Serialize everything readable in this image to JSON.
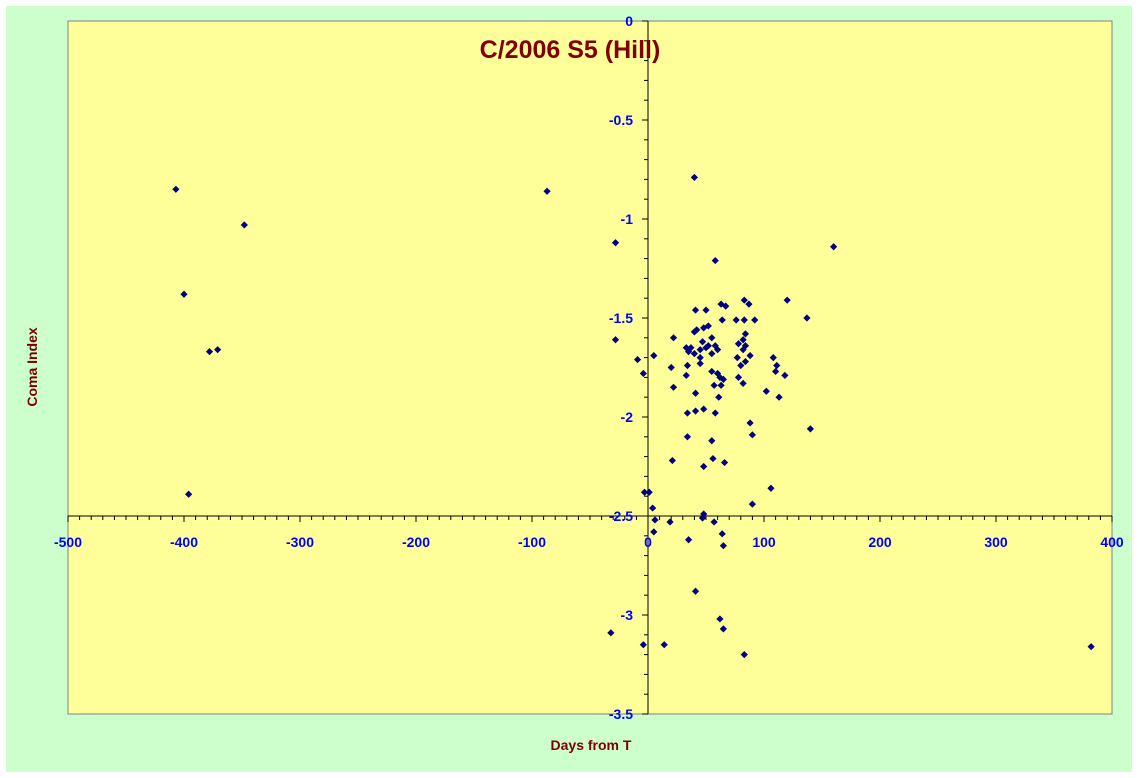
{
  "chart_data": {
    "type": "scatter",
    "title": "C/2006 S5 (Hill)",
    "xlabel": "Days from T",
    "ylabel": "Coma Index",
    "xlim": [
      -500,
      400
    ],
    "ylim": [
      -3.5,
      0
    ],
    "xticks": [
      -500,
      -400,
      -300,
      -200,
      -100,
      0,
      100,
      200,
      300,
      400
    ],
    "yticks": [
      0,
      -0.5,
      -1,
      -1.5,
      -2,
      -2.5,
      -3,
      -3.5
    ],
    "xtick_labels": [
      "-500",
      "-400",
      "-300",
      "-200",
      "-100",
      "0",
      "100",
      "200",
      "300",
      "400"
    ],
    "ytick_labels": [
      "0",
      "-0.5",
      "-1",
      "-1.5",
      "-2",
      "-2.5",
      "-3",
      "-3.5"
    ],
    "x_axis_crosses_at_y": -2.5,
    "y_axis_crosses_at_x": 0,
    "grid": false,
    "legend": "none",
    "colors": {
      "outer_background": "#ccffcc",
      "plot_background": "#ffff99",
      "title": "#800000",
      "axis_title": "#800000",
      "tick_label": "#0000ff",
      "marker": "#000080"
    },
    "series": [
      {
        "marker": "diamond",
        "points": [
          [
            -407,
            -0.85
          ],
          [
            -348,
            -1.03
          ],
          [
            -400,
            -1.38
          ],
          [
            -378,
            -1.67
          ],
          [
            -371,
            -1.66
          ],
          [
            -396,
            -2.39
          ],
          [
            -87,
            -0.86
          ],
          [
            -28,
            -1.12
          ],
          [
            -28,
            -1.61
          ],
          [
            -9,
            -1.71
          ],
          [
            -4,
            -1.78
          ],
          [
            -3,
            -2.38
          ],
          [
            1,
            -2.38
          ],
          [
            5,
            -1.69
          ],
          [
            4,
            -2.46
          ],
          [
            6,
            -2.52
          ],
          [
            5,
            -2.58
          ],
          [
            -32,
            -3.09
          ],
          [
            -4,
            -3.15
          ],
          [
            14,
            -3.15
          ],
          [
            40,
            -0.79
          ],
          [
            58,
            -1.21
          ],
          [
            160,
            -1.14
          ],
          [
            41,
            -1.46
          ],
          [
            48,
            -1.55
          ],
          [
            50,
            -1.46
          ],
          [
            52,
            -1.54
          ],
          [
            55,
            -1.6
          ],
          [
            63,
            -1.43
          ],
          [
            67,
            -1.44
          ],
          [
            64,
            -1.51
          ],
          [
            40,
            -1.57
          ],
          [
            42,
            -1.56
          ],
          [
            47,
            -1.62
          ],
          [
            50,
            -1.65
          ],
          [
            37,
            -1.65
          ],
          [
            33,
            -1.65
          ],
          [
            35,
            -1.67
          ],
          [
            40,
            -1.68
          ],
          [
            45,
            -1.66
          ],
          [
            45,
            -1.7
          ],
          [
            52,
            -1.64
          ],
          [
            55,
            -1.68
          ],
          [
            58,
            -1.64
          ],
          [
            60,
            -1.66
          ],
          [
            22,
            -1.6
          ],
          [
            20,
            -1.75
          ],
          [
            34,
            -1.74
          ],
          [
            33,
            -1.79
          ],
          [
            45,
            -1.73
          ],
          [
            55,
            -1.77
          ],
          [
            60,
            -1.78
          ],
          [
            62,
            -1.8
          ],
          [
            65,
            -1.81
          ],
          [
            57,
            -1.84
          ],
          [
            63,
            -1.84
          ],
          [
            22,
            -1.85
          ],
          [
            41,
            -1.88
          ],
          [
            61,
            -1.9
          ],
          [
            34,
            -1.98
          ],
          [
            41,
            -1.97
          ],
          [
            48,
            -1.96
          ],
          [
            58,
            -1.98
          ],
          [
            34,
            -2.1
          ],
          [
            55,
            -2.12
          ],
          [
            56,
            -2.21
          ],
          [
            21,
            -2.22
          ],
          [
            48,
            -2.25
          ],
          [
            66,
            -2.23
          ],
          [
            83,
            -1.41
          ],
          [
            87,
            -1.43
          ],
          [
            76,
            -1.51
          ],
          [
            83,
            -1.51
          ],
          [
            92,
            -1.51
          ],
          [
            84,
            -1.58
          ],
          [
            82,
            -1.61
          ],
          [
            84,
            -1.64
          ],
          [
            78,
            -1.63
          ],
          [
            82,
            -1.66
          ],
          [
            88,
            -1.69
          ],
          [
            77,
            -1.7
          ],
          [
            84,
            -1.72
          ],
          [
            80,
            -1.74
          ],
          [
            78,
            -1.8
          ],
          [
            82,
            -1.83
          ],
          [
            108,
            -1.7
          ],
          [
            111,
            -1.74
          ],
          [
            110,
            -1.77
          ],
          [
            120,
            -1.41
          ],
          [
            137,
            -1.5
          ],
          [
            118,
            -1.79
          ],
          [
            102,
            -1.87
          ],
          [
            113,
            -1.9
          ],
          [
            88,
            -2.03
          ],
          [
            90,
            -2.09
          ],
          [
            140,
            -2.06
          ],
          [
            90,
            -2.44
          ],
          [
            106,
            -2.36
          ],
          [
            19,
            -2.53
          ],
          [
            48,
            -2.49
          ],
          [
            47,
            -2.51
          ],
          [
            57,
            -2.53
          ],
          [
            64,
            -2.59
          ],
          [
            65,
            -2.65
          ],
          [
            35,
            -2.62
          ],
          [
            41,
            -2.88
          ],
          [
            62,
            -3.02
          ],
          [
            65,
            -3.07
          ],
          [
            83,
            -3.2
          ],
          [
            382,
            -3.16
          ]
        ]
      }
    ]
  }
}
